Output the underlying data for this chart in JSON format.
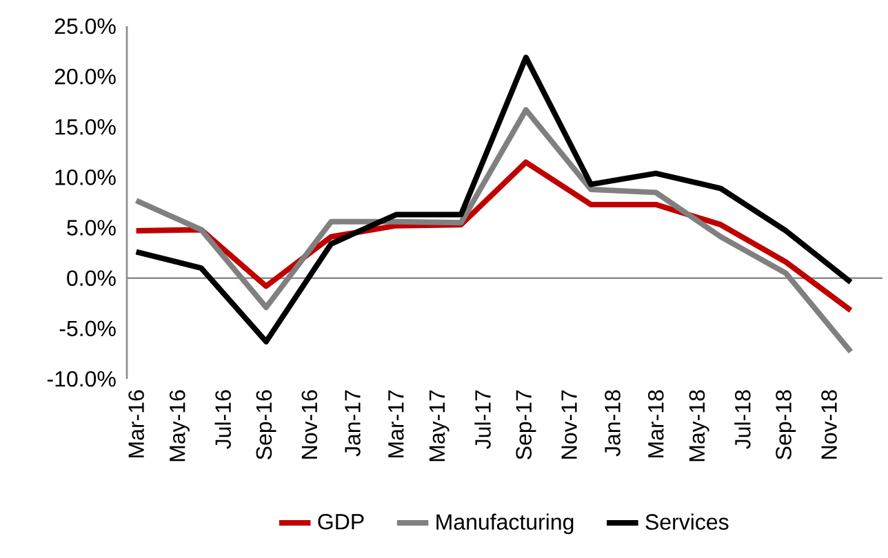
{
  "chart_data": {
    "type": "line",
    "x": [
      "2016-03",
      "2016-06",
      "2016-09",
      "2016-12",
      "2017-03",
      "2017-06",
      "2017-09",
      "2017-12",
      "2018-03",
      "2018-06",
      "2018-09",
      "2018-12"
    ],
    "series": [
      {
        "name": "GDP",
        "color": "#c00000",
        "values": [
          4.7,
          4.8,
          -0.8,
          4.1,
          5.2,
          5.3,
          11.5,
          7.3,
          7.3,
          5.3,
          1.6,
          -3.2
        ]
      },
      {
        "name": "Manufacturing",
        "color": "#808080",
        "values": [
          7.7,
          4.8,
          -2.9,
          5.6,
          5.6,
          5.5,
          16.7,
          8.8,
          8.5,
          4.1,
          0.5,
          -7.3
        ]
      },
      {
        "name": "Services",
        "color": "#000000",
        "values": [
          2.6,
          1.0,
          -6.3,
          3.4,
          6.3,
          6.3,
          21.9,
          9.3,
          10.4,
          8.9,
          4.7,
          -0.4
        ]
      }
    ],
    "xlim": [
      "2016-02-18",
      "2019-01-15"
    ],
    "xticks": [
      {
        "value": "2016-03",
        "label": "Mar-16"
      },
      {
        "value": "2016-05",
        "label": "May-16"
      },
      {
        "value": "2016-07",
        "label": "Jul-16"
      },
      {
        "value": "2016-09",
        "label": "Sep-16"
      },
      {
        "value": "2016-11",
        "label": "Nov-16"
      },
      {
        "value": "2017-01",
        "label": "Jan-17"
      },
      {
        "value": "2017-03",
        "label": "Mar-17"
      },
      {
        "value": "2017-05",
        "label": "May-17"
      },
      {
        "value": "2017-07",
        "label": "Jul-17"
      },
      {
        "value": "2017-09",
        "label": "Sep-17"
      },
      {
        "value": "2017-11",
        "label": "Nov-17"
      },
      {
        "value": "2018-01",
        "label": "Jan-18"
      },
      {
        "value": "2018-03",
        "label": "Mar-18"
      },
      {
        "value": "2018-05",
        "label": "May-18"
      },
      {
        "value": "2018-07",
        "label": "Jul-18"
      },
      {
        "value": "2018-09",
        "label": "Sep-18"
      },
      {
        "value": "2018-11",
        "label": "Nov-18"
      }
    ],
    "ylim": [
      -10,
      25
    ],
    "yticks": [
      {
        "value": -10,
        "label": "-10.0%"
      },
      {
        "value": -5,
        "label": "-5.0%"
      },
      {
        "value": 0,
        "label": "0.0%"
      },
      {
        "value": 5,
        "label": "5.0%"
      },
      {
        "value": 10,
        "label": "10.0%"
      },
      {
        "value": 15,
        "label": "15.0%"
      },
      {
        "value": 20,
        "label": "20.0%"
      },
      {
        "value": 25,
        "label": "25.0%"
      }
    ],
    "legend": "bottom",
    "marker": "none",
    "line_style": "solid"
  }
}
